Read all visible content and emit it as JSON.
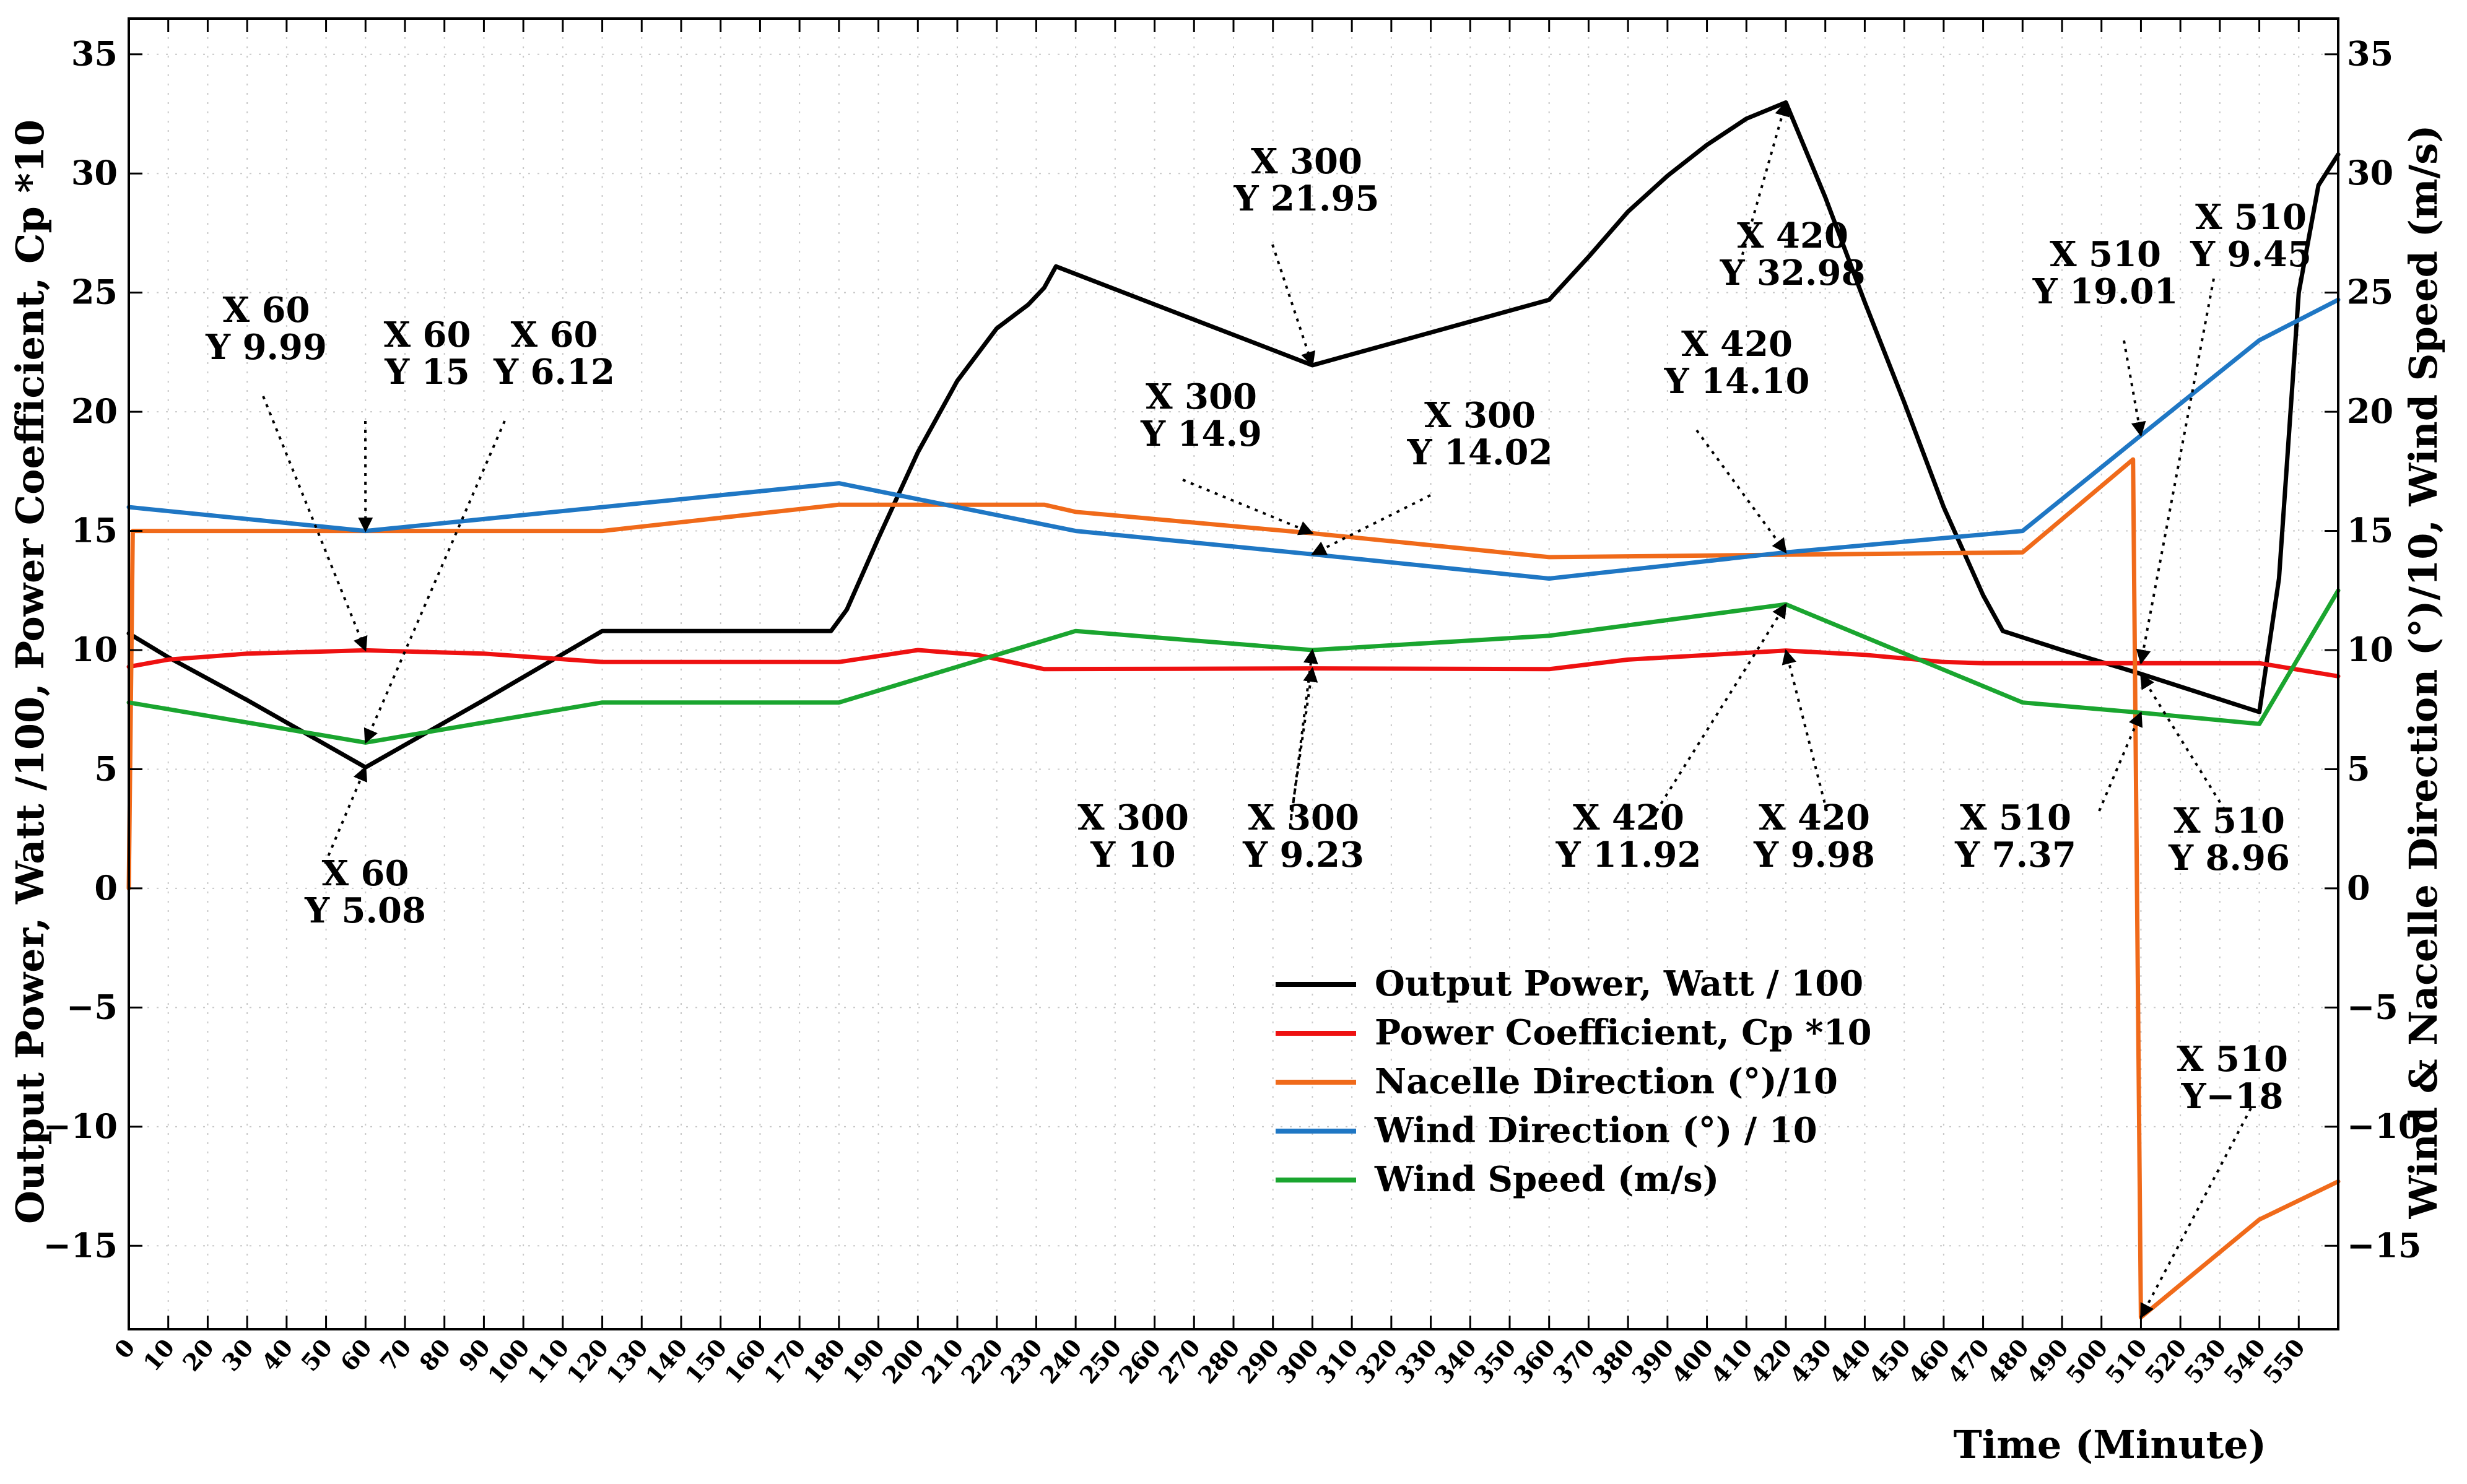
{
  "chart_data": {
    "type": "line",
    "xlabel": "Time (Minute)",
    "ylabel_left": "Output Power, Watt /100, Power Coefficient, Cp *10",
    "ylabel_right": "Wind & Nacelle Direction (°)/10, Wind Speed (m/s)",
    "xlim": [
      0,
      560
    ],
    "ylim": [
      -18.5,
      36.5
    ],
    "x_ticks": [
      "0",
      "10",
      "20",
      "30",
      "40",
      "50",
      "60",
      "70",
      "80",
      "90",
      "100",
      "110",
      "120",
      "130",
      "140",
      "150",
      "160",
      "170",
      "180",
      "190",
      "200",
      "210",
      "220",
      "230",
      "240",
      "250",
      "260",
      "270",
      "280",
      "290",
      "300",
      "310",
      "320",
      "330",
      "340",
      "350",
      "360",
      "370",
      "380",
      "390",
      "400",
      "410",
      "420",
      "430",
      "440",
      "450",
      "460",
      "470",
      "480",
      "490",
      "500",
      "510",
      "520",
      "530",
      "540",
      "550"
    ],
    "y_ticks": [
      "35",
      "30",
      "25",
      "20",
      "15",
      "10",
      "5",
      "0",
      "−5",
      "−10",
      "−15"
    ],
    "grid": true,
    "legend_position": "lower-center",
    "series": [
      {
        "name": "Output Power, Watt / 100",
        "color": "#000000",
        "points": [
          [
            0,
            10.7
          ],
          [
            10,
            9.7
          ],
          [
            30,
            7.9
          ],
          [
            60,
            5.08
          ],
          [
            90,
            7.9
          ],
          [
            120,
            10.8
          ],
          [
            178,
            10.8
          ],
          [
            182,
            11.7
          ],
          [
            190,
            14.7
          ],
          [
            200,
            18.3
          ],
          [
            210,
            21.3
          ],
          [
            220,
            23.5
          ],
          [
            228,
            24.5
          ],
          [
            232,
            25.2
          ],
          [
            235,
            26.1
          ],
          [
            300,
            21.95
          ],
          [
            360,
            24.7
          ],
          [
            370,
            26.5
          ],
          [
            380,
            28.4
          ],
          [
            390,
            29.9
          ],
          [
            400,
            31.2
          ],
          [
            410,
            32.3
          ],
          [
            420,
            32.98
          ],
          [
            430,
            29.0
          ],
          [
            440,
            24.6
          ],
          [
            450,
            20.4
          ],
          [
            460,
            16.0
          ],
          [
            470,
            12.3
          ],
          [
            475,
            10.8
          ],
          [
            490,
            10.0
          ],
          [
            510,
            9.0
          ],
          [
            540,
            7.4
          ],
          [
            545,
            13.0
          ],
          [
            550,
            25.0
          ],
          [
            555,
            29.5
          ],
          [
            560,
            30.8
          ]
        ]
      },
      {
        "name": "Power Coefficient, Cp *10",
        "color": "#ee1111",
        "points": [
          [
            0,
            9.3
          ],
          [
            10,
            9.6
          ],
          [
            30,
            9.85
          ],
          [
            60,
            9.99
          ],
          [
            90,
            9.85
          ],
          [
            120,
            9.5
          ],
          [
            180,
            9.5
          ],
          [
            200,
            10.0
          ],
          [
            215,
            9.8
          ],
          [
            232,
            9.2
          ],
          [
            300,
            9.23
          ],
          [
            360,
            9.2
          ],
          [
            380,
            9.6
          ],
          [
            420,
            9.98
          ],
          [
            440,
            9.8
          ],
          [
            460,
            9.5
          ],
          [
            470,
            9.45
          ],
          [
            500,
            9.45
          ],
          [
            510,
            9.45
          ],
          [
            540,
            9.45
          ],
          [
            560,
            8.9
          ]
        ]
      },
      {
        "name": "Nacelle Direction (°)/10",
        "color": "#f06a1a",
        "points": [
          [
            0,
            0
          ],
          [
            1,
            15
          ],
          [
            60,
            15
          ],
          [
            120,
            15
          ],
          [
            180,
            16.1
          ],
          [
            232,
            16.1
          ],
          [
            240,
            15.8
          ],
          [
            300,
            14.9
          ],
          [
            360,
            13.9
          ],
          [
            420,
            14.0
          ],
          [
            480,
            14.1
          ],
          [
            508,
            18.0
          ],
          [
            510,
            -18.0
          ],
          [
            540,
            -13.9
          ],
          [
            560,
            -12.3
          ]
        ]
      },
      {
        "name": "Wind Direction (°) / 10",
        "color": "#1f77c4",
        "points": [
          [
            0,
            16.0
          ],
          [
            60,
            15.0
          ],
          [
            180,
            17.0
          ],
          [
            240,
            15.0
          ],
          [
            300,
            14.02
          ],
          [
            360,
            13.0
          ],
          [
            420,
            14.1
          ],
          [
            480,
            15.0
          ],
          [
            510,
            19.01
          ],
          [
            540,
            23.0
          ],
          [
            560,
            24.7
          ]
        ]
      },
      {
        "name": "Wind Speed (m/s)",
        "color": "#1aa52f",
        "points": [
          [
            0,
            7.8
          ],
          [
            60,
            6.12
          ],
          [
            120,
            7.8
          ],
          [
            180,
            7.8
          ],
          [
            240,
            10.8
          ],
          [
            300,
            10.0
          ],
          [
            360,
            10.6
          ],
          [
            420,
            11.92
          ],
          [
            480,
            7.8
          ],
          [
            510,
            7.37
          ],
          [
            540,
            6.9
          ],
          [
            560,
            12.5
          ]
        ]
      }
    ],
    "annotations": [
      {
        "lines": [
          "X 60",
          "Y 9.99"
        ],
        "x": 60,
        "y": 9.99
      },
      {
        "lines": [
          "X 60",
          "Y 15"
        ],
        "x": 60,
        "y": 15
      },
      {
        "lines": [
          "X 60",
          "Y 6.12"
        ],
        "x": 60,
        "y": 6.12
      },
      {
        "lines": [
          "X 60",
          "Y 5.08"
        ],
        "x": 60,
        "y": 5.08
      },
      {
        "lines": [
          "X 300",
          "Y 21.95"
        ],
        "x": 300,
        "y": 21.95
      },
      {
        "lines": [
          "X 300",
          "Y 14.9"
        ],
        "x": 300,
        "y": 14.9
      },
      {
        "lines": [
          "X 300",
          "Y 14.02"
        ],
        "x": 300,
        "y": 14.02
      },
      {
        "lines": [
          "X 300",
          "Y 10"
        ],
        "x": 300,
        "y": 10
      },
      {
        "lines": [
          "X 300",
          "Y 9.23"
        ],
        "x": 300,
        "y": 9.23
      },
      {
        "lines": [
          "X 420",
          "Y 32.98"
        ],
        "x": 420,
        "y": 32.98
      },
      {
        "lines": [
          "X 420",
          "Y 14.10"
        ],
        "x": 420,
        "y": 14.1
      },
      {
        "lines": [
          "X 420",
          "Y 11.92"
        ],
        "x": 420,
        "y": 11.92
      },
      {
        "lines": [
          "X 420",
          "Y 9.98"
        ],
        "x": 420,
        "y": 9.98
      },
      {
        "lines": [
          "X 510",
          "Y 19.01"
        ],
        "x": 510,
        "y": 19.01
      },
      {
        "lines": [
          "X 510",
          "Y 9.45"
        ],
        "x": 510,
        "y": 9.45
      },
      {
        "lines": [
          "X 510",
          "Y 7.37"
        ],
        "x": 510,
        "y": 7.37
      },
      {
        "lines": [
          "X 510",
          "Y 8.96"
        ],
        "x": 510,
        "y": 8.96
      },
      {
        "lines": [
          "X 510",
          "Y−18"
        ],
        "x": 510,
        "y": -18
      }
    ]
  }
}
